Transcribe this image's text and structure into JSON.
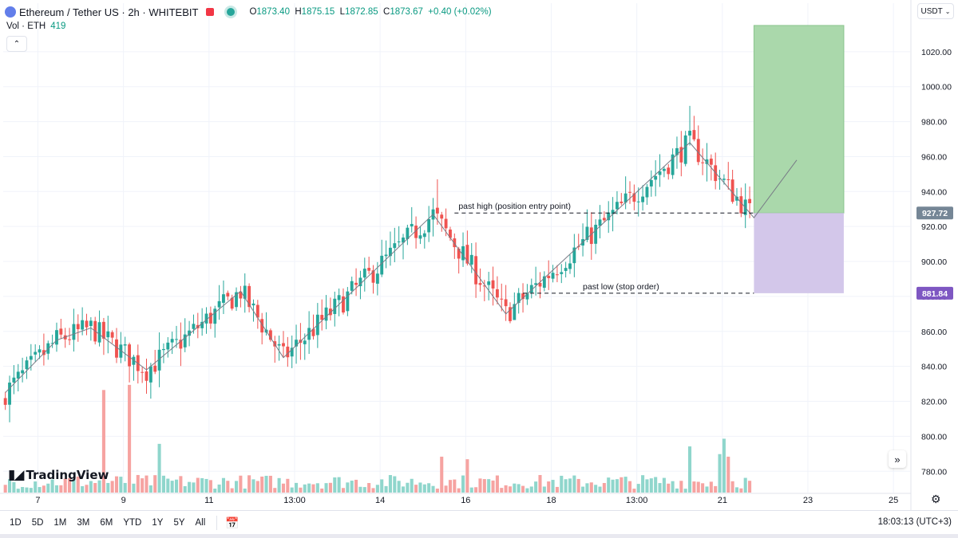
{
  "header": {
    "symbol": "Ethereum / Tether US · 2h · WHITEBIT",
    "open_label": "O",
    "open": "1873.40",
    "high_label": "H",
    "high": "1875.15",
    "low_label": "L",
    "low": "1872.85",
    "close_label": "C",
    "close": "1873.67",
    "change": "+0.40 (+0.02%)"
  },
  "volume_legend": {
    "label": "Vol · ETH",
    "value": "419"
  },
  "currency": "USDT",
  "logo_text": "TradingView",
  "bottom_bar": {
    "ranges": [
      "1D",
      "5D",
      "1M",
      "3M",
      "6M",
      "YTD",
      "1Y",
      "5Y",
      "All"
    ],
    "clock": "18:03:13 (UTC+3)"
  },
  "colors": {
    "up": "#26a69a",
    "down": "#ef5350",
    "up_volume": "#8fd6cc",
    "down_volume": "#f6a3a1",
    "target_zone": "#a5d6a7",
    "stop_zone": "#d1c4e9",
    "stop_label": "#7e57c2",
    "entry_label": "#758696"
  },
  "chart_data": {
    "type": "candlestick",
    "title": "Ethereum / Tether US · 2h · WHITEBIT",
    "y_ticks": [
      "1020.00",
      "1000.00",
      "980.00",
      "960.00",
      "940.00",
      "920.00",
      "900.00",
      "880.00",
      "860.00",
      "840.00",
      "820.00",
      "800.00",
      "780.00"
    ],
    "y_tick_values": [
      1020,
      1000,
      980,
      960,
      940,
      920,
      900,
      880,
      860,
      840,
      820,
      800,
      780
    ],
    "ylim": [
      771,
      1045
    ],
    "x_ticks": [
      "7",
      "9",
      "11",
      "13:00",
      "14",
      "16",
      "18",
      "13:00",
      "21",
      "23",
      "25"
    ],
    "x_tick_positions": [
      5,
      25,
      45,
      65,
      85,
      105,
      125,
      145,
      165,
      185,
      205
    ],
    "x_count": 212,
    "bars_shown": 175,
    "annotations": [
      {
        "text": "past high (position entry point)",
        "price": 927.72,
        "from_index": 105,
        "to_index": 175
      },
      {
        "text": "past low (stop order)",
        "price": 881.84,
        "from_index": 121,
        "to_index": 175
      }
    ],
    "price_labels": [
      {
        "text": "927.72",
        "value": 927.72,
        "style": "entry"
      },
      {
        "text": "881.84",
        "value": 881.84,
        "style": "stop"
      }
    ],
    "position": {
      "from_index": 175,
      "to_index": 196,
      "entry": 927.72,
      "stop": 881.84,
      "target": 1035
    },
    "zigzag": [
      {
        "i": 0,
        "p": 825
      },
      {
        "i": 12,
        "p": 855
      },
      {
        "i": 20,
        "p": 862
      },
      {
        "i": 33,
        "p": 838
      },
      {
        "i": 55,
        "p": 883
      },
      {
        "i": 65,
        "p": 845
      },
      {
        "i": 100,
        "p": 927
      },
      {
        "i": 117,
        "p": 870
      },
      {
        "i": 160,
        "p": 968
      },
      {
        "i": 175,
        "p": 925
      },
      {
        "i": 185,
        "p": 958
      }
    ],
    "volume_spikes": [
      {
        "i": 23,
        "v": 4.0
      },
      {
        "i": 29,
        "v": 4.2
      },
      {
        "i": 36,
        "v": 1.9
      },
      {
        "i": 160,
        "v": 1.8
      },
      {
        "i": 168,
        "v": 2.1
      },
      {
        "i": 169,
        "v": 1.6
      },
      {
        "i": 169,
        "v": 1.4
      },
      {
        "i": 167,
        "v": 1.5
      },
      {
        "i": 102,
        "v": 1.4
      },
      {
        "i": 108,
        "v": 1.3
      }
    ]
  }
}
